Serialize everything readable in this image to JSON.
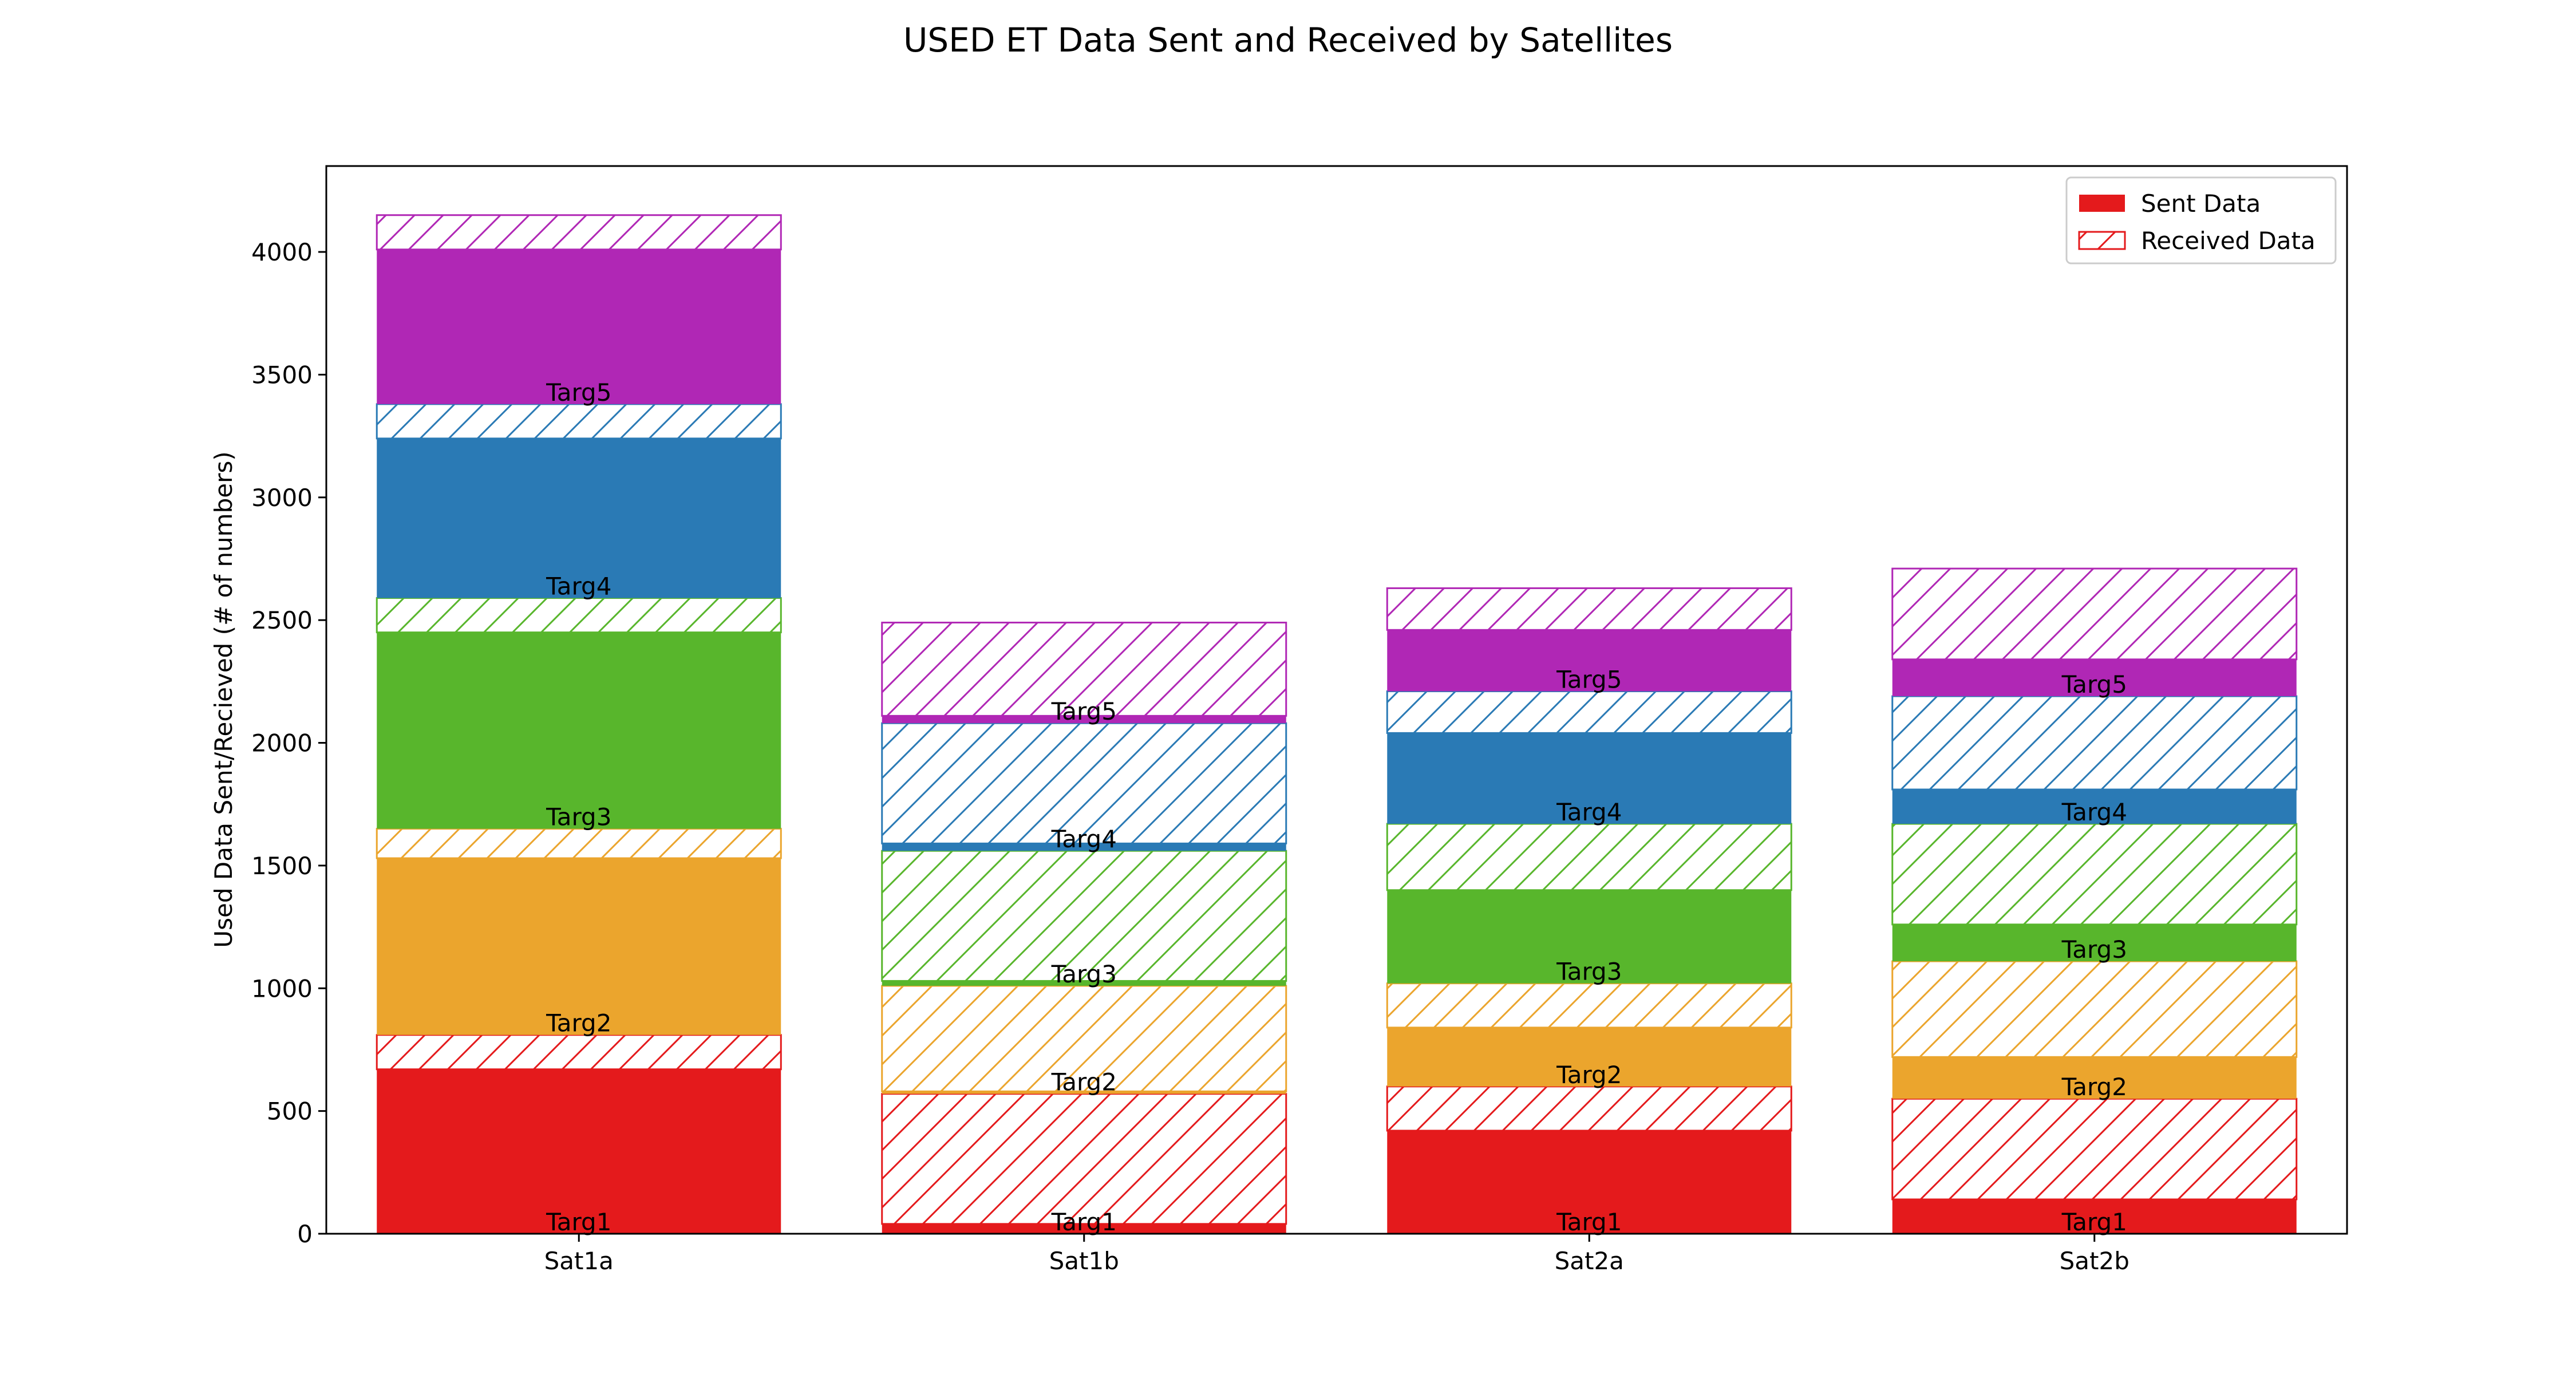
{
  "chart_data": {
    "type": "bar",
    "title": "USED ET Data Sent and Received by Satellites",
    "xlabel": "",
    "ylabel": "Used Data Sent/Recieved (# of numbers)",
    "categories": [
      "Sat1a",
      "Sat1b",
      "Sat2a",
      "Sat2b"
    ],
    "ylim": [
      0,
      4350
    ],
    "yticks": [
      0,
      500,
      1000,
      1500,
      2000,
      2500,
      3000,
      3500,
      4000
    ],
    "grid": false,
    "legend_position": "top-right",
    "legend": [
      {
        "label": "Sent Data",
        "style": "solid",
        "color": "#e41a1c"
      },
      {
        "label": "Received Data",
        "style": "hatched",
        "color": "#e41a1c"
      }
    ],
    "targets": [
      {
        "name": "Targ1",
        "color": "#e41a1c",
        "sent": [
          670,
          40,
          420,
          140
        ],
        "received": [
          140,
          530,
          180,
          410
        ]
      },
      {
        "name": "Targ2",
        "color": "#eba52d",
        "sent": [
          720,
          10,
          240,
          170
        ],
        "received": [
          120,
          430,
          180,
          390
        ]
      },
      {
        "name": "Targ3",
        "color": "#58b62c",
        "sent": [
          800,
          20,
          380,
          150
        ],
        "received": [
          140,
          530,
          270,
          410
        ]
      },
      {
        "name": "Targ4",
        "color": "#2a7ab5",
        "sent": [
          650,
          30,
          370,
          140
        ],
        "received": [
          140,
          490,
          170,
          380
        ]
      },
      {
        "name": "Targ5",
        "color": "#b027b5",
        "sent": [
          630,
          30,
          250,
          150
        ],
        "received": [
          140,
          380,
          170,
          370
        ]
      }
    ]
  }
}
